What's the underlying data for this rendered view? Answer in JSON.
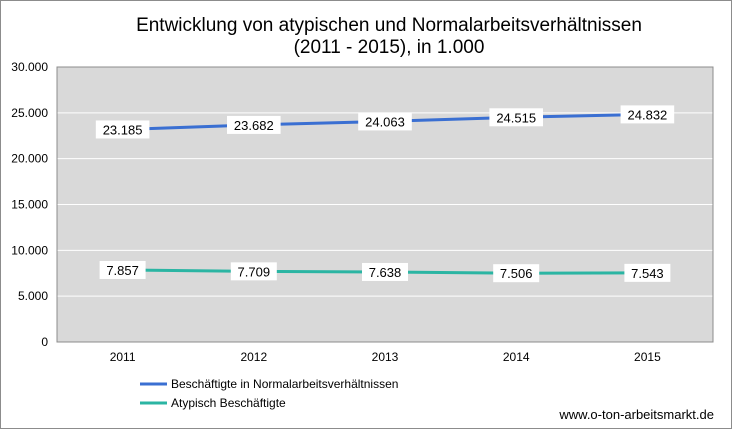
{
  "chart_data": {
    "type": "line",
    "title_lines": [
      "Entwicklung von atypischen und Normalarbeitsverhältnissen",
      "(2011 - 2015), in 1.000"
    ],
    "categories": [
      "2011",
      "2012",
      "2013",
      "2014",
      "2015"
    ],
    "ylim": [
      0,
      30000
    ],
    "yticks": [
      0,
      5000,
      10000,
      15000,
      20000,
      25000,
      30000
    ],
    "ytick_labels": [
      "0",
      "5.000",
      "10.000",
      "15.000",
      "20.000",
      "25.000",
      "30.000"
    ],
    "grid": "horizontal",
    "legend_position": "bottom-left",
    "series": [
      {
        "name": "Beschäftigte in Normalarbeitsverhältnissen",
        "color": "#3a6fd2",
        "values": [
          23185,
          23682,
          24063,
          24515,
          24832
        ],
        "labels": [
          "23.185",
          "23.682",
          "24.063",
          "24.515",
          "24.832"
        ]
      },
      {
        "name": "Atypisch Beschäftigte",
        "color": "#2bb5a3",
        "values": [
          7857,
          7709,
          7638,
          7506,
          7543
        ],
        "labels": [
          "7.857",
          "7.709",
          "7.638",
          "7.506",
          "7.543"
        ]
      }
    ],
    "source": "www.o-ton-arbeitsmarkt.de"
  }
}
